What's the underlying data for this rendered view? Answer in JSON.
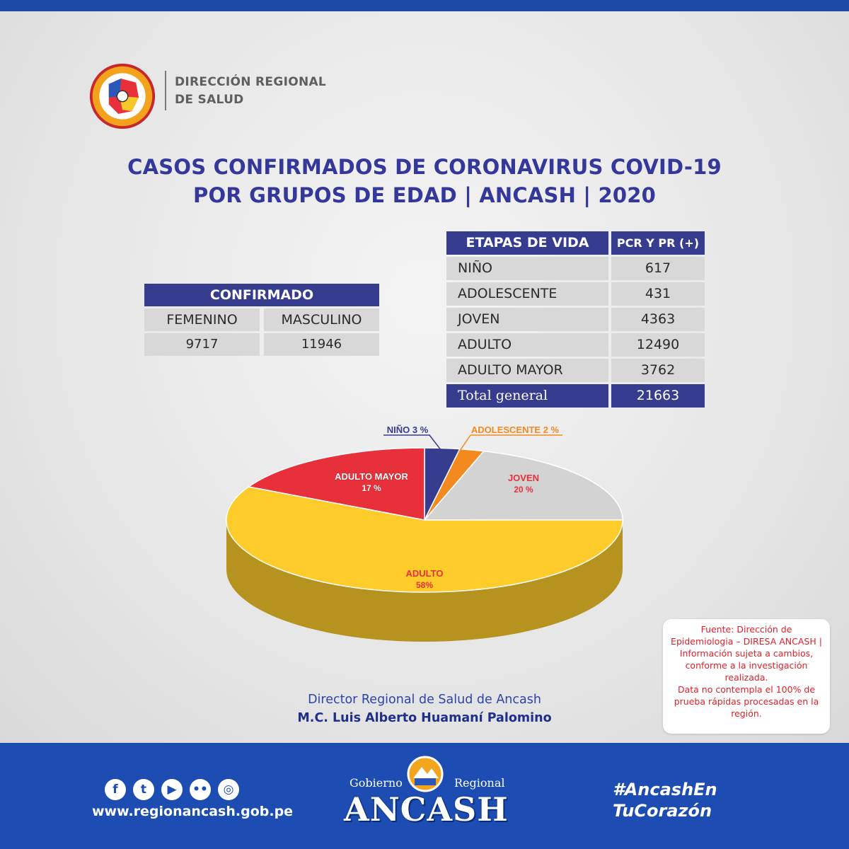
{
  "header": {
    "org_line1": "DIRECCIÓN REGIONAL",
    "org_line2": "DE SALUD",
    "title_line1": "CASOS CONFIRMADOS DE CORONAVIRUS COVID-19",
    "title_line2": "POR GRUPOS DE EDAD | ANCASH | 2020"
  },
  "confirmado": {
    "title": "CONFIRMADO",
    "col1": "FEMENINO",
    "col2": "MASCULINO",
    "val1": "9717",
    "val2": "11946"
  },
  "etapas": {
    "head1": "ETAPAS DE VIDA",
    "head2": "PCR Y PR (+)",
    "rows": [
      {
        "label": "NIÑO",
        "value": "617"
      },
      {
        "label": "ADOLESCENTE",
        "value": "431"
      },
      {
        "label": "JOVEN",
        "value": "4363"
      },
      {
        "label": "ADULTO",
        "value": "12490"
      },
      {
        "label": "ADULTO MAYOR",
        "value": "3762"
      }
    ],
    "total_label": "Total general",
    "total_value": "21663"
  },
  "chart_data": {
    "type": "pie",
    "title": "",
    "slices": [
      {
        "name": "NIÑO",
        "label": "NIÑO 3 %",
        "value": 617,
        "pct": 3,
        "color": "#363d8f"
      },
      {
        "name": "ADOLESCENTE",
        "label": "ADOLESCENTE 2 %",
        "value": 431,
        "pct": 2,
        "color": "#f28a20"
      },
      {
        "name": "JOVEN",
        "label_name": "JOVEN",
        "label_pct": "20 %",
        "value": 4363,
        "pct": 20,
        "color": "#d3d3d3"
      },
      {
        "name": "ADULTO",
        "label_name": "ADULTO",
        "label_pct": "58%",
        "value": 12490,
        "pct": 58,
        "color": "#fdcb2a"
      },
      {
        "name": "ADULTO MAYOR",
        "label_name": "ADULTO MAYOR",
        "label_pct": "17 %",
        "value": 3762,
        "pct": 17,
        "color": "#e8303a"
      }
    ],
    "style": "3d"
  },
  "source": {
    "line1": "Fuente: Dirección de Epidemiologia – DIRESA ANCASH | Información sujeta a cambios, conforme a la investigación realizada.",
    "line2": "Data no contempla el 100% de prueba rápidas procesadas en la región."
  },
  "director": {
    "line1": "Director Regional de Salud de Ancash",
    "line2": "M.C. Luis Alberto Huamaní Palomino"
  },
  "footer": {
    "website": "www.regionancash.gob.pe",
    "gob_left": "Gobierno",
    "gob_right": "Regional",
    "gob_main": "ANCASH",
    "hashtag1": "#AncashEn",
    "hashtag2": "TuCorazón",
    "socials": [
      "facebook-icon",
      "twitter-icon",
      "youtube-icon",
      "flickr-icon",
      "instagram-icon"
    ]
  }
}
